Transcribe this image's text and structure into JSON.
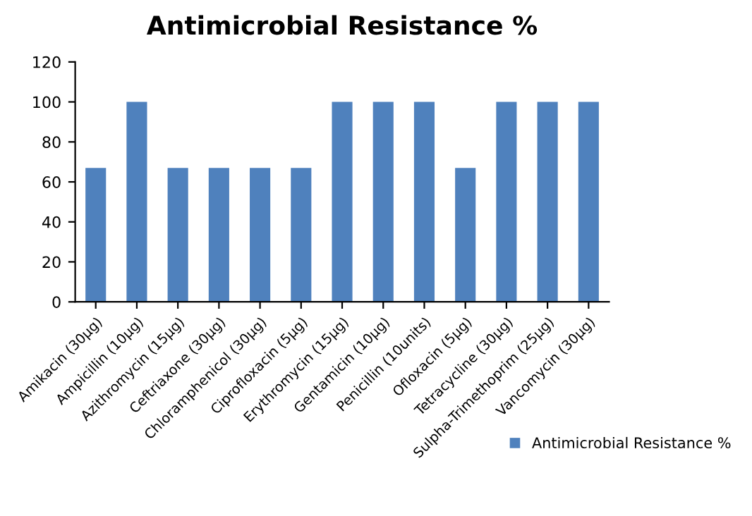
{
  "chart_data": {
    "type": "bar",
    "title": "Antimicrobial Resistance %",
    "categories": [
      "Amikacin (30µg)",
      "Ampicillin (10µg)",
      "Azithromycin (15µg)",
      "Ceftriaxone (30µg)",
      "Chloramphenicol (30µg)",
      "Ciprofloxacin (5µg)",
      "Erythromycin (15µg)",
      "Gentamicin (10µg)",
      "Penicillin (10units)",
      "Ofloxacin (5µg)",
      "Tetracycline (30µg)",
      "Sulpha-Trimethoprim (25µg)",
      "Vancomycin (30µg)"
    ],
    "series": [
      {
        "name": "Antimicrobial Resistance %",
        "color": "#4f81bd",
        "values": [
          67,
          100,
          67,
          67,
          67,
          67,
          100,
          100,
          100,
          67,
          100,
          100,
          100
        ]
      }
    ],
    "ylim": [
      0,
      120
    ],
    "yticks": [
      0,
      20,
      40,
      60,
      80,
      100,
      120
    ],
    "grid": false,
    "legend": "bottom right"
  }
}
